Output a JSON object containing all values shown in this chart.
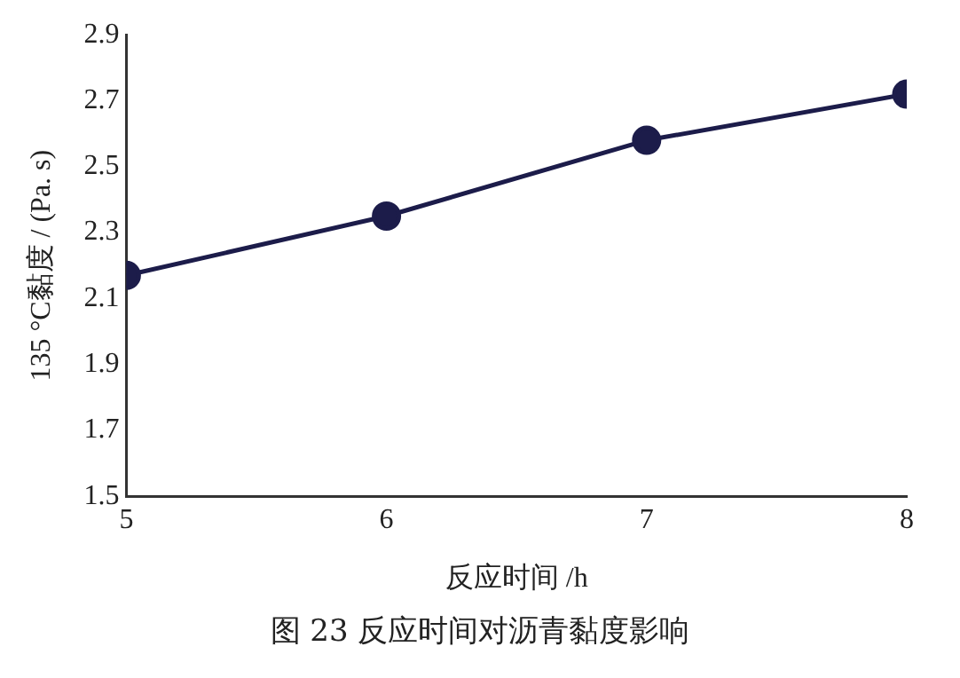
{
  "chart_data": {
    "type": "line",
    "xlabel": "反应时间 /h",
    "ylabel": "135 °C黏度 / (Pa. s)",
    "x": [
      5,
      6,
      7,
      8
    ],
    "series": [
      {
        "color": "#1c1c4a",
        "values": [
          2.17,
          2.35,
          2.58,
          2.72
        ]
      }
    ],
    "xlim": [
      5,
      8
    ],
    "xticks": [
      5,
      6,
      7,
      8
    ],
    "ylim": [
      1.5,
      2.9
    ],
    "yticks": [
      1.5,
      1.7,
      1.9,
      2.1,
      2.3,
      2.5,
      2.7,
      2.9
    ],
    "grid": false,
    "legend": false,
    "marker": "circle",
    "line_style": "solid",
    "annotations": [
      "图 23    反应时间对沥青黏度影响"
    ]
  }
}
